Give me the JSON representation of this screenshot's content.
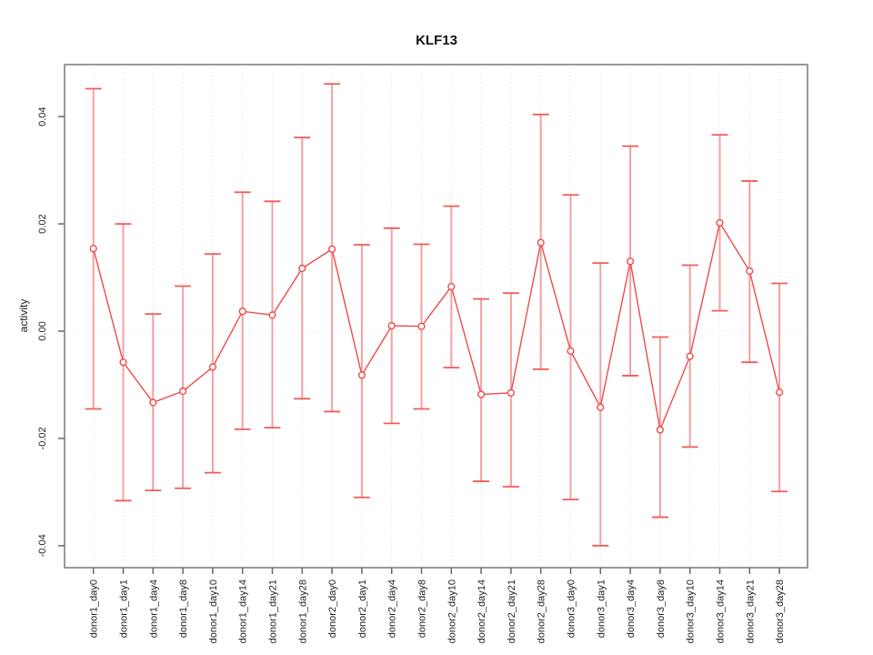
{
  "chart_data": {
    "type": "line",
    "title": "KLF13",
    "xlabel": "",
    "ylabel": "activity",
    "legend_position": "none",
    "grid": "vertical dotted gridline per category; dotted horizontal line at y=0",
    "marker": "open-circle",
    "error_bars": true,
    "ylim": [
      -0.0441,
      0.0497
    ],
    "yticks": [
      -0.04,
      -0.02,
      0.0,
      0.02,
      0.04
    ],
    "categories": [
      "donor1_day0",
      "donor1_day1",
      "donor1_day4",
      "donor1_day8",
      "donor1_day10",
      "donor1_day14",
      "donor1_day21",
      "donor1_day28",
      "donor2_day0",
      "donor2_day1",
      "donor2_day4",
      "donor2_day8",
      "donor2_day10",
      "donor2_day14",
      "donor2_day21",
      "donor2_day28",
      "donor3_day0",
      "donor3_day1",
      "donor3_day4",
      "donor3_day8",
      "donor3_day10",
      "donor3_day14",
      "donor3_day21",
      "donor3_day28"
    ],
    "series": [
      {
        "name": "activity",
        "values": [
          0.0154,
          -0.0058,
          -0.0133,
          -0.0112,
          -0.0067,
          0.0037,
          0.003,
          0.0117,
          0.0153,
          -0.0082,
          0.001,
          0.0009,
          0.0083,
          -0.0118,
          -0.0115,
          0.0165,
          -0.0037,
          -0.0142,
          0.013,
          -0.0184,
          -0.0047,
          0.0202,
          0.0112,
          -0.0114
        ],
        "upper": [
          0.0452,
          0.02,
          0.0032,
          0.0084,
          0.0144,
          0.0259,
          0.0242,
          0.0361,
          0.0461,
          0.0161,
          0.0192,
          0.0162,
          0.0233,
          0.006,
          0.0071,
          0.0404,
          0.0254,
          0.0127,
          0.0345,
          -0.0011,
          0.0123,
          0.0366,
          0.028,
          0.0089
        ],
        "lower": [
          -0.0145,
          -0.0316,
          -0.0297,
          -0.0293,
          -0.0264,
          -0.0183,
          -0.018,
          -0.0126,
          -0.015,
          -0.031,
          -0.0172,
          -0.0145,
          -0.0068,
          -0.028,
          -0.029,
          -0.0071,
          -0.0314,
          -0.04,
          -0.0083,
          -0.0347,
          -0.0216,
          0.0038,
          -0.0058,
          -0.0299
        ]
      }
    ],
    "colors": {
      "series_line": "#ee4a4a",
      "marker_stroke": "#ee4a4a",
      "marker_fill": "#ffffff",
      "error_bar": "#f5a0a0",
      "error_cap": "#ee5c5c",
      "gridline": "#dcdcdc",
      "zero_line": "#dedede",
      "box": "#9a9a9a",
      "tick": "#666666",
      "text": "#222222",
      "background": "#ffffff"
    }
  }
}
